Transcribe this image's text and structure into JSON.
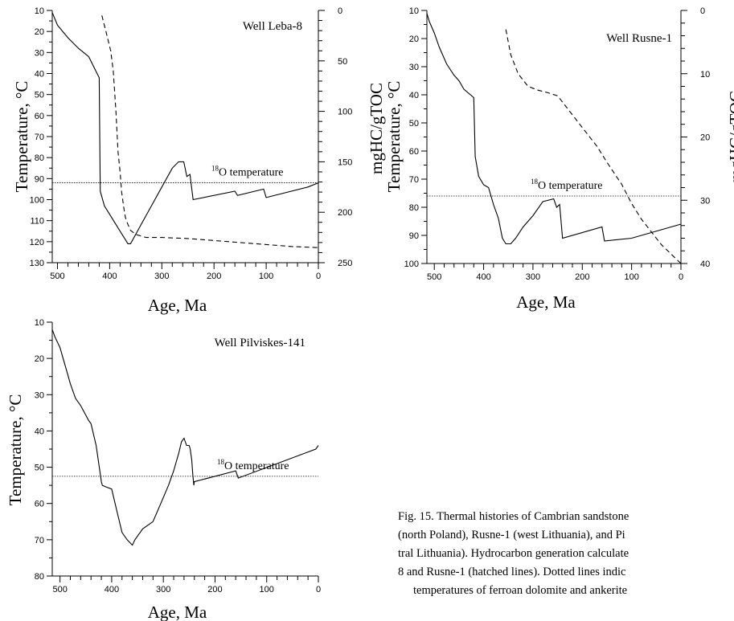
{
  "chart_data": [
    {
      "type": "line",
      "title": "Well Leba-8",
      "xlabel": "Age, Ma",
      "ylabel": "Temperature, °C",
      "y2label": "mgHC/gTOC",
      "xlim": [
        510,
        0
      ],
      "ylim": [
        10,
        130
      ],
      "y2lim": [
        0,
        250
      ],
      "x_ticks": [
        500,
        400,
        300,
        200,
        100,
        0
      ],
      "y_ticks": [
        10,
        20,
        30,
        40,
        50,
        60,
        70,
        80,
        90,
        100,
        110,
        120,
        130
      ],
      "y2_ticks": [
        0,
        50,
        100,
        150,
        200,
        250
      ],
      "annotation": {
        "sup": "18",
        "text": "O temperature",
        "value": 92
      },
      "series": [
        {
          "style": "solid",
          "axis": "y",
          "x": [
            510,
            500,
            480,
            460,
            445,
            440,
            420,
            418,
            410,
            400,
            390,
            380,
            370,
            365,
            360,
            340,
            320,
            300,
            280,
            268,
            258,
            252,
            246,
            240,
            160,
            155,
            105,
            100,
            20,
            0
          ],
          "y": [
            11,
            17,
            23,
            28,
            31,
            32,
            42,
            96,
            103,
            107,
            111,
            115,
            119,
            121,
            121,
            112,
            103,
            94,
            85,
            82,
            82,
            89,
            88,
            100,
            96,
            98,
            95,
            99,
            94,
            92
          ]
        },
        {
          "style": "dashed",
          "axis": "y2",
          "x": [
            415,
            405,
            398,
            393,
            388,
            384,
            380,
            377,
            373,
            370,
            365,
            360,
            350,
            330,
            300,
            250,
            200,
            150,
            100,
            50,
            0
          ],
          "y": [
            5,
            25,
            40,
            60,
            100,
            140,
            160,
            180,
            195,
            205,
            212,
            218,
            222,
            225,
            225,
            226,
            228,
            230,
            232,
            234,
            235
          ]
        }
      ]
    },
    {
      "type": "line",
      "title": "Well Rusne-1",
      "xlabel": "Age, Ma",
      "ylabel": "Temperature, °C",
      "y2label": "mgHC/gTOC",
      "xlim": [
        515,
        0
      ],
      "ylim": [
        10,
        100
      ],
      "y2lim": [
        0,
        40
      ],
      "x_ticks": [
        500,
        400,
        300,
        200,
        100,
        0
      ],
      "y_ticks": [
        10,
        20,
        30,
        40,
        50,
        60,
        70,
        80,
        90,
        100
      ],
      "y2_ticks": [
        0,
        10,
        20,
        30,
        40
      ],
      "annotation": {
        "sup": "18",
        "text": "O temperature",
        "value": 76
      },
      "series": [
        {
          "style": "solid",
          "axis": "y",
          "x": [
            515,
            510,
            500,
            490,
            475,
            460,
            450,
            440,
            420,
            417,
            410,
            400,
            390,
            380,
            370,
            362,
            355,
            345,
            335,
            320,
            300,
            280,
            258,
            252,
            246,
            240,
            160,
            155,
            100,
            0
          ],
          "y": [
            11,
            14,
            18,
            23,
            29,
            33,
            35,
            38,
            41,
            62,
            69,
            72,
            73,
            79,
            84,
            91,
            93,
            93,
            91,
            87,
            83,
            78,
            77,
            80,
            79,
            91,
            87,
            92,
            91,
            86
          ]
        },
        {
          "style": "dashed",
          "axis": "y2",
          "x": [
            355,
            345,
            330,
            310,
            290,
            270,
            250,
            230,
            210,
            190,
            170,
            150,
            120,
            100,
            80,
            60,
            40,
            20,
            0
          ],
          "y": [
            3,
            7,
            10,
            12,
            12.6,
            13,
            13.5,
            15.5,
            17.5,
            19.5,
            21.5,
            24,
            27.5,
            30.5,
            33,
            35,
            37,
            38.5,
            40
          ]
        }
      ]
    },
    {
      "type": "line",
      "title": "Well Pilviskes-141",
      "xlabel": "Age, Ma",
      "ylabel": "Temperature, °C",
      "xlim": [
        515,
        0
      ],
      "ylim": [
        10,
        80
      ],
      "x_ticks": [
        500,
        400,
        300,
        200,
        100,
        0
      ],
      "y_ticks": [
        10,
        20,
        30,
        40,
        50,
        60,
        70,
        80
      ],
      "annotation": {
        "sup": "18",
        "text": "O temperature",
        "value": 52.5
      },
      "series": [
        {
          "style": "solid",
          "axis": "y",
          "x": [
            515,
            510,
            500,
            490,
            480,
            470,
            460,
            445,
            440,
            430,
            420,
            418,
            410,
            400,
            390,
            380,
            370,
            360,
            355,
            340,
            320,
            305,
            290,
            280,
            270,
            265,
            260,
            255,
            250,
            248,
            245,
            243,
            241,
            240,
            160,
            155,
            5,
            0
          ],
          "y": [
            12,
            14,
            17,
            22,
            27,
            31,
            33,
            37,
            38,
            44,
            54,
            55,
            55.5,
            56,
            62,
            68,
            70,
            71.5,
            70,
            67,
            65,
            60,
            55,
            51,
            46,
            43,
            42,
            44,
            44,
            45,
            48,
            52,
            55,
            54,
            51,
            53,
            45,
            44
          ]
        }
      ]
    }
  ],
  "caption": {
    "lines": [
      "Fig. 15. Thermal histories of Cambrian sandstone",
      "(north Poland), Rusne-1 (west Lithuania), and Pi",
      "tral Lithuania). Hydrocarbon generation calculate",
      "8 and Rusne-1 (hatched lines). Dotted lines indic",
      "temperatures of ferroan dolomite and ankerite"
    ]
  }
}
